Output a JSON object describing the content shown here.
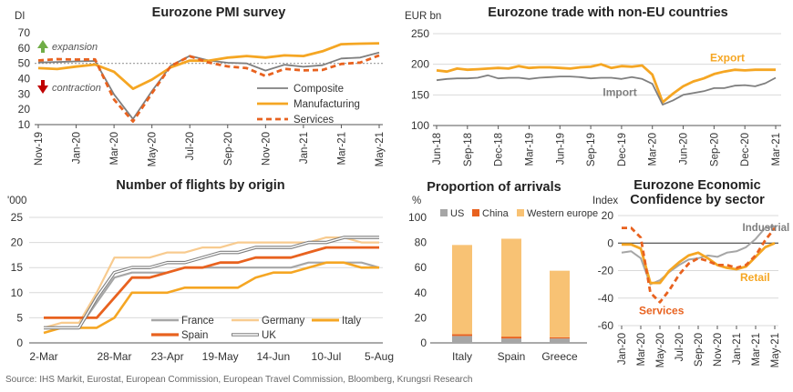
{
  "source": "Source: IHS Markit, Eurostat, European Commission, European Travel Commission, Bloomberg, Krungsri Research",
  "chart_data": [
    {
      "id": "pmi",
      "type": "line",
      "title": "Eurozone PMI survey",
      "ylabel": "DI",
      "ylim": [
        10,
        70
      ],
      "yticks": [
        10,
        20,
        30,
        40,
        50,
        60,
        70
      ],
      "x": [
        "Nov-19",
        "Dec-19",
        "Jan-20",
        "Feb-20",
        "Mar-20",
        "Apr-20",
        "May-20",
        "Jun-20",
        "Jul-20",
        "Aug-20",
        "Sep-20",
        "Oct-20",
        "Nov-20",
        "Dec-20",
        "Jan-21",
        "Feb-21",
        "Mar-21",
        "Apr-21",
        "May-21"
      ],
      "xtick_labels": [
        "Nov-19",
        "Jan-20",
        "Mar-20",
        "May-20",
        "Jul-20",
        "Sep-20",
        "Nov-20",
        "Jan-21",
        "Mar-21",
        "May-21"
      ],
      "reference_line": 50,
      "annotations": [
        "expansion",
        "contraction"
      ],
      "colors": {
        "composite": "#7f7f7f",
        "manufacturing": "#f5a623",
        "services": "#e8621f",
        "expansion_arrow": "#70ad47",
        "contraction_arrow": "#c00000"
      },
      "series": [
        {
          "name": "Composite",
          "key": "composite",
          "values": [
            50.6,
            50.9,
            51.3,
            51.6,
            29.7,
            13.6,
            31.9,
            48.5,
            54.9,
            51.9,
            50.4,
            50.0,
            45.3,
            49.1,
            47.8,
            48.8,
            53.2,
            53.8,
            57.1
          ]
        },
        {
          "name": "Manufacturing",
          "key": "manufacturing",
          "values": [
            46.9,
            46.3,
            47.9,
            49.2,
            44.5,
            33.4,
            39.4,
            47.4,
            51.8,
            51.7,
            53.7,
            54.8,
            53.8,
            55.2,
            54.8,
            57.9,
            62.5,
            62.9,
            63.1
          ]
        },
        {
          "name": "Services",
          "key": "services",
          "values": [
            51.9,
            52.8,
            52.5,
            52.6,
            26.4,
            12.0,
            30.5,
            48.3,
            54.7,
            50.5,
            48.0,
            46.9,
            41.7,
            46.4,
            45.4,
            45.7,
            49.6,
            50.5,
            55.2
          ]
        }
      ]
    },
    {
      "id": "trade",
      "type": "line",
      "title": "Eurozone trade with non-EU countries",
      "ylabel": "EUR bn",
      "ylim": [
        100,
        250
      ],
      "yticks": [
        100,
        150,
        200,
        250
      ],
      "x": [
        "Jun-18",
        "Jul-18",
        "Aug-18",
        "Sep-18",
        "Oct-18",
        "Nov-18",
        "Dec-18",
        "Jan-19",
        "Feb-19",
        "Mar-19",
        "Apr-19",
        "May-19",
        "Jun-19",
        "Jul-19",
        "Aug-19",
        "Sep-19",
        "Oct-19",
        "Nov-19",
        "Dec-19",
        "Jan-20",
        "Feb-20",
        "Mar-20",
        "Apr-20",
        "May-20",
        "Jun-20",
        "Jul-20",
        "Aug-20",
        "Sep-20",
        "Oct-20",
        "Nov-20",
        "Dec-20",
        "Jan-21",
        "Feb-21",
        "Mar-21"
      ],
      "xtick_labels": [
        "Jun-18",
        "Sep-18",
        "Dec-18",
        "Mar-19",
        "Jun-19",
        "Sep-19",
        "Dec-19",
        "Mar-20",
        "Jun-20",
        "Sep-20",
        "Dec-20",
        "Mar-21"
      ],
      "colors": {
        "export": "#f5a623",
        "import": "#7f7f7f"
      },
      "series": [
        {
          "name": "Export",
          "key": "export",
          "values": [
            190,
            188,
            193,
            191,
            192,
            193,
            194,
            193,
            197,
            194,
            195,
            195,
            194,
            193,
            195,
            196,
            200,
            194,
            197,
            196,
            198,
            183,
            138,
            152,
            164,
            172,
            177,
            184,
            188,
            191,
            190,
            191,
            191,
            191
          ]
        },
        {
          "name": "Import",
          "key": "import",
          "values": [
            174,
            176,
            177,
            177,
            178,
            182,
            177,
            178,
            178,
            176,
            178,
            179,
            180,
            180,
            179,
            177,
            178,
            178,
            176,
            179,
            176,
            168,
            134,
            141,
            150,
            153,
            156,
            161,
            161,
            165,
            166,
            164,
            169,
            178
          ]
        }
      ]
    },
    {
      "id": "flights",
      "type": "line",
      "title": "Number of flights by origin",
      "ylabel": "'000",
      "ylim": [
        0,
        25
      ],
      "yticks": [
        0,
        5,
        10,
        15,
        20,
        25
      ],
      "x": [
        "2-Mar",
        "9-Mar",
        "16-Mar",
        "23-Mar",
        "28-Mar",
        "6-Apr",
        "13-Apr",
        "23-Apr",
        "30-Apr",
        "10-May",
        "19-May",
        "29-May",
        "5-Jun",
        "14-Jun",
        "23-Jun",
        "1-Jul",
        "10-Jul",
        "18-Jul",
        "27-Jul",
        "5-Aug"
      ],
      "xtick_labels": [
        "2-Mar",
        "28-Mar",
        "23-Apr",
        "19-May",
        "14-Jun",
        "10-Jul",
        "5-Aug"
      ],
      "colors": {
        "france": "#a6a6a6",
        "germany": "#f8cb8f",
        "italy": "#f5a623",
        "spain": "#e8621f",
        "uk": "#7f7f7f"
      },
      "series": [
        {
          "name": "France",
          "key": "france",
          "values": [
            3,
            3,
            3,
            8,
            13,
            14,
            14,
            14,
            15,
            15,
            15,
            15,
            15,
            15,
            15,
            16,
            16,
            16,
            16,
            15
          ]
        },
        {
          "name": "Germany",
          "key": "germany",
          "values": [
            3,
            4,
            4,
            10,
            17,
            17,
            17,
            18,
            18,
            19,
            19,
            20,
            20,
            20,
            20,
            20,
            21,
            21,
            20,
            20
          ]
        },
        {
          "name": "Italy",
          "key": "italy",
          "values": [
            2,
            3,
            3,
            3,
            5,
            10,
            10,
            10,
            11,
            11,
            11,
            11,
            13,
            14,
            14,
            15,
            16,
            16,
            15,
            15
          ]
        },
        {
          "name": "Spain",
          "key": "spain",
          "values": [
            5,
            5,
            5,
            5,
            9,
            13,
            13,
            14,
            15,
            15,
            16,
            16,
            17,
            17,
            17,
            18,
            19,
            19,
            19,
            19
          ]
        },
        {
          "name": "UK",
          "key": "uk",
          "values": [
            3,
            3,
            3,
            9,
            14,
            15,
            15,
            16,
            16,
            17,
            18,
            18,
            19,
            19,
            19,
            20,
            20,
            21,
            21,
            21
          ]
        }
      ]
    },
    {
      "id": "arrivals",
      "type": "bar",
      "stacked": true,
      "title": "Proportion of arrivals",
      "ylabel": "%",
      "ylim": [
        0,
        100
      ],
      "yticks": [
        0,
        20,
        40,
        60,
        80,
        100
      ],
      "categories": [
        "Italy",
        "Spain",
        "Greece"
      ],
      "colors": {
        "us": "#a6a6a6",
        "china": "#e8621f",
        "western_europe": "#f8c274"
      },
      "series": [
        {
          "name": "US",
          "key": "us",
          "values": [
            5.5,
            3.5,
            3.5
          ]
        },
        {
          "name": "China",
          "key": "china",
          "values": [
            1.5,
            1.5,
            1.0
          ]
        },
        {
          "name": "Western europe",
          "key": "western_europe",
          "values": [
            71,
            78,
            53
          ]
        }
      ]
    },
    {
      "id": "confidence",
      "type": "line",
      "title": "Eurozone Economic Confidence by sector",
      "title_lines": [
        "Eurozone Economic",
        "Confidence by sector"
      ],
      "ylabel": "Index",
      "ylim": [
        -60,
        20
      ],
      "yticks": [
        -60,
        -40,
        -20,
        0,
        20
      ],
      "x": [
        "Jan-20",
        "Feb-20",
        "Mar-20",
        "Apr-20",
        "May-20",
        "Jun-20",
        "Jul-20",
        "Aug-20",
        "Sep-20",
        "Oct-20",
        "Nov-20",
        "Dec-20",
        "Jan-21",
        "Feb-21",
        "Mar-21",
        "Apr-21",
        "May-21"
      ],
      "xtick_labels": [
        "Jan-20",
        "Mar-20",
        "May-20",
        "Jul-20",
        "Sep-20",
        "Nov-20",
        "Jan-21",
        "Mar-21",
        "May-21"
      ],
      "colors": {
        "industrial": "#a6a6a6",
        "retail": "#f5a623",
        "services": "#e8621f"
      },
      "series": [
        {
          "name": "Industrial",
          "key": "industrial",
          "values": [
            -7,
            -6,
            -11,
            -30,
            -27,
            -21,
            -16,
            -12,
            -11,
            -9,
            -10,
            -7,
            -6,
            -3,
            3,
            11,
            12
          ]
        },
        {
          "name": "Retail",
          "key": "retail",
          "values": [
            -1,
            -1,
            -4,
            -29,
            -29,
            -20,
            -14,
            -9,
            -7,
            -11,
            -16,
            -18,
            -19,
            -17,
            -10,
            -3,
            0
          ]
        },
        {
          "name": "Services",
          "key": "services",
          "values": [
            11,
            11,
            4,
            -36,
            -43,
            -34,
            -23,
            -15,
            -11,
            -13,
            -16,
            -16,
            -18,
            -16,
            -9,
            2,
            11
          ]
        }
      ]
    }
  ]
}
